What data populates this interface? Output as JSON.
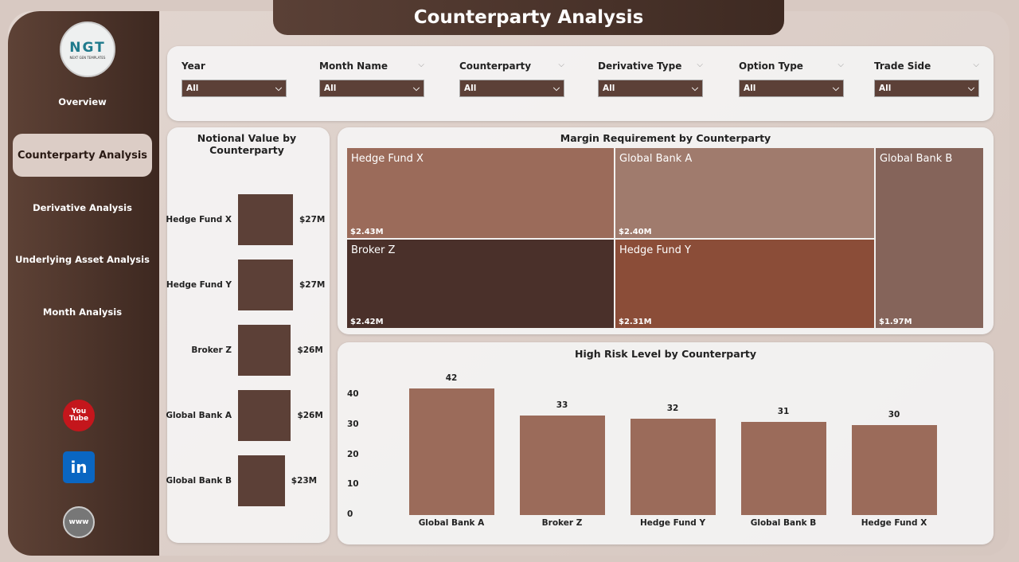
{
  "title": "Counterparty Analysis",
  "logo": {
    "text": "NGT",
    "sub": "NEXT GEN TEMPLATES"
  },
  "nav": [
    {
      "label": "Overview"
    },
    {
      "label": "Counterparty Analysis",
      "active": true
    },
    {
      "label": "Derivative Analysis"
    },
    {
      "label": "Underlying Asset Analysis"
    },
    {
      "label": "Month Analysis"
    }
  ],
  "social": [
    {
      "icon": "youtube-icon",
      "label": "You Tube"
    },
    {
      "icon": "linkedin-icon",
      "label": "in"
    },
    {
      "icon": "globe-icon",
      "label": "www"
    }
  ],
  "filters": [
    {
      "label": "Year",
      "value": "All"
    },
    {
      "label": "Month Name",
      "value": "All"
    },
    {
      "label": "Counterparty",
      "value": "All"
    },
    {
      "label": "Derivative Type",
      "value": "All"
    },
    {
      "label": "Option Type",
      "value": "All"
    },
    {
      "label": "Trade Side",
      "value": "All"
    }
  ],
  "colors": {
    "accent": "#5c4037",
    "bar": "#9b6b5a"
  },
  "chart_data": [
    {
      "type": "bar",
      "orientation": "horizontal",
      "title": "Notional Value by Counterparty",
      "categories": [
        "Hedge Fund X",
        "Hedge Fund Y",
        "Broker Z",
        "Global Bank A",
        "Global Bank B"
      ],
      "values": [
        27,
        27,
        26,
        26,
        23
      ],
      "labels": [
        "$27M",
        "$27M",
        "$26M",
        "$26M",
        "$23M"
      ],
      "unit": "$M"
    },
    {
      "type": "treemap",
      "title": "Margin Requirement by Counterparty",
      "categories": [
        "Hedge Fund X",
        "Global Bank A",
        "Global Bank B",
        "Broker Z",
        "Hedge Fund Y"
      ],
      "values": [
        2.43,
        2.4,
        1.97,
        2.42,
        2.31
      ],
      "labels": [
        "$2.43M",
        "$2.40M",
        "$1.97M",
        "$2.42M",
        "$2.31M"
      ],
      "colors": [
        "#9b6b5a",
        "#a07b6d",
        "#85645a",
        "#4a302a",
        "#8b4d38"
      ]
    },
    {
      "type": "bar",
      "title": "High Risk Level by Counterparty",
      "categories": [
        "Global Bank A",
        "Broker Z",
        "Hedge Fund Y",
        "Global Bank B",
        "Hedge Fund X"
      ],
      "values": [
        42,
        33,
        32,
        31,
        30
      ],
      "yticks": [
        0,
        10,
        20,
        30,
        40
      ],
      "ylim": [
        0,
        42
      ],
      "grid": false
    }
  ]
}
